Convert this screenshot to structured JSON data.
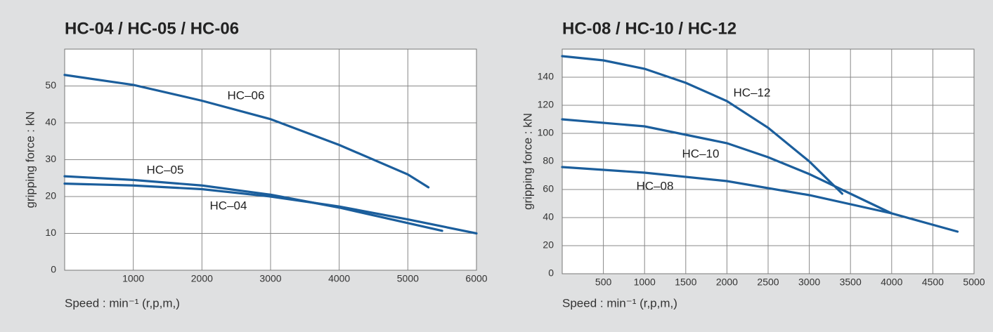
{
  "chart_data": [
    {
      "type": "line",
      "title": "HC-04 / HC-05 / HC-06",
      "x_label": "Speed : min⁻¹ (r,p,m,)",
      "y_label": "gripping force : kN",
      "xlim": [
        0,
        6000
      ],
      "ylim": [
        0,
        60
      ],
      "xticks": [
        1000,
        2000,
        3000,
        4000,
        5000,
        6000
      ],
      "yticks": [
        0,
        10,
        20,
        30,
        40,
        50
      ],
      "grid": true,
      "series": [
        {
          "name": "HC–06",
          "color": "#1b5e9c",
          "x": [
            0,
            1000,
            2000,
            3000,
            4000,
            5000,
            5300
          ],
          "values": [
            53,
            50.3,
            46,
            41,
            34,
            26,
            22.5
          ]
        },
        {
          "name": "HC–05",
          "color": "#1b5e9c",
          "x": [
            0,
            1000,
            2000,
            3000,
            4000,
            5000,
            5500
          ],
          "values": [
            25.5,
            24.5,
            23,
            20.5,
            17,
            12.8,
            10.7
          ]
        },
        {
          "name": "HC–04",
          "color": "#1b5e9c",
          "x": [
            0,
            1000,
            2000,
            3000,
            4000,
            5000,
            6000
          ],
          "values": [
            23.5,
            23,
            22,
            20,
            17.3,
            13.8,
            10
          ]
        }
      ]
    },
    {
      "type": "line",
      "title": "HC-08 / HC-10 / HC-12",
      "x_label": "Speed : min⁻¹ (r,p,m,)",
      "y_label": "gripping force : kN",
      "xlim": [
        0,
        5000
      ],
      "ylim": [
        0,
        160
      ],
      "xticks": [
        500,
        1000,
        1500,
        2000,
        2500,
        3000,
        3500,
        4000,
        4500,
        5000
      ],
      "yticks": [
        0,
        20,
        40,
        60,
        80,
        100,
        120,
        140
      ],
      "grid": true,
      "series": [
        {
          "name": "HC–12",
          "color": "#1b5e9c",
          "x": [
            0,
            500,
            1000,
            1500,
            2000,
            2500,
            3000,
            3400
          ],
          "values": [
            155,
            152,
            146,
            136,
            123,
            104,
            80,
            57
          ]
        },
        {
          "name": "HC–10",
          "color": "#1b5e9c",
          "x": [
            0,
            1000,
            2000,
            2500,
            3000,
            3500,
            4000
          ],
          "values": [
            110,
            105,
            93,
            83,
            71,
            57,
            43
          ]
        },
        {
          "name": "HC–08",
          "color": "#1b5e9c",
          "x": [
            0,
            1000,
            2000,
            3000,
            4000,
            4800
          ],
          "values": [
            76,
            72,
            66,
            56,
            43,
            30
          ]
        }
      ]
    }
  ]
}
